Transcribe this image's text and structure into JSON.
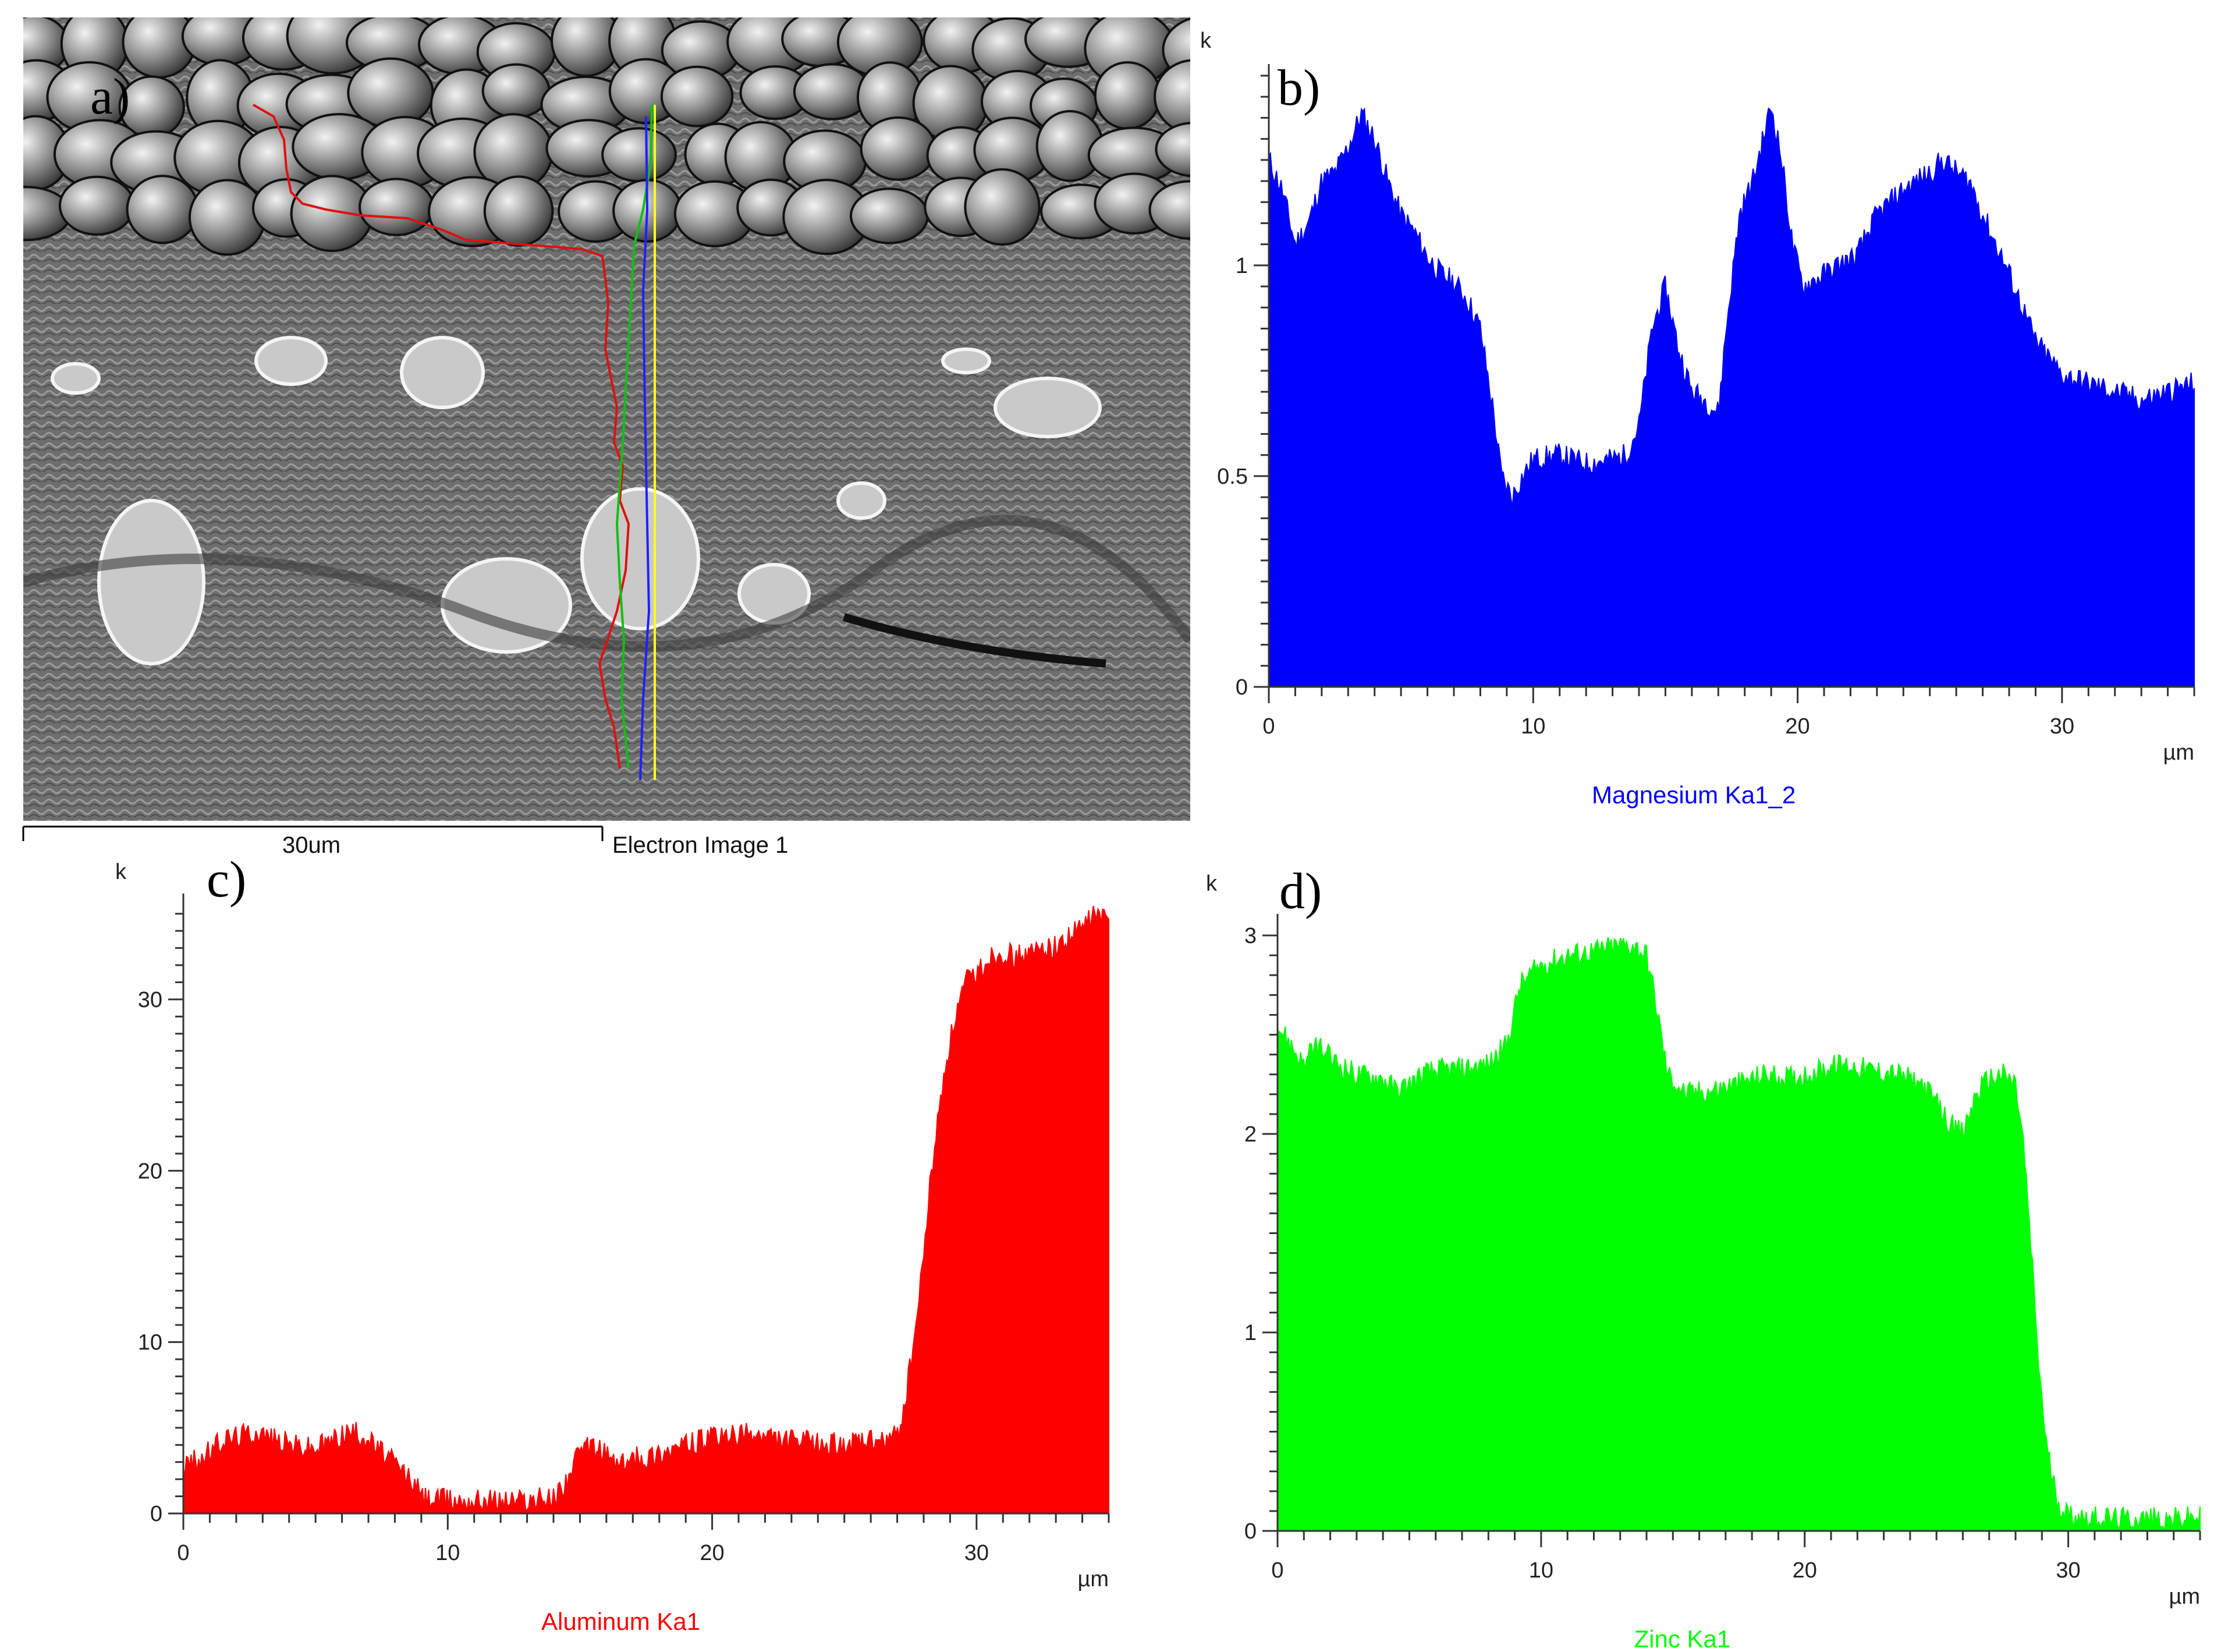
{
  "panels": {
    "a": {
      "letter": "a)",
      "scale_label": "30um",
      "image_label": "Electron Image 1"
    },
    "b": {
      "letter": "b)"
    },
    "c": {
      "letter": "c)"
    },
    "d": {
      "letter": "d)"
    }
  },
  "colors": {
    "magnesium": "#0000ff",
    "aluminum": "#ff0000",
    "zinc": "#00ff00",
    "overlay_red": "#e01010",
    "overlay_green": "#10c010",
    "overlay_blue": "#2020ff",
    "overlay_yellow": "#ffff20"
  },
  "chart_data": [
    {
      "type": "area",
      "panel": "b",
      "series_name": "Magnesium Ka1_2",
      "color": "#0000ff",
      "y_unit": "k",
      "x_unit": "µm",
      "xlim": [
        0,
        35
      ],
      "ylim": [
        0,
        1.45
      ],
      "x_ticks": [
        0,
        10,
        20,
        30
      ],
      "y_ticks": [
        0,
        0.5,
        1
      ],
      "y_tick_labels": [
        "0",
        "0.5",
        "1"
      ],
      "x": [
        0,
        0.5,
        1,
        1.5,
        2,
        2.5,
        3,
        3.5,
        4,
        4.5,
        5,
        5.5,
        6,
        6.5,
        7,
        7.5,
        8,
        8.5,
        8.8,
        9.2,
        9.6,
        10,
        11,
        12,
        13,
        13.5,
        14,
        14.5,
        15,
        15.5,
        16,
        16.5,
        17,
        17.3,
        17.8,
        18.3,
        18.7,
        19,
        19.4,
        19.8,
        20.2,
        20.8,
        21.5,
        22.2,
        23,
        24,
        25,
        25.5,
        26,
        26.5,
        27,
        27.5,
        28,
        28.5,
        29,
        29.5,
        30,
        31,
        32,
        33,
        34,
        35
      ],
      "y": [
        1.25,
        1.18,
        1.05,
        1.1,
        1.2,
        1.22,
        1.28,
        1.36,
        1.3,
        1.2,
        1.12,
        1.08,
        1.02,
        0.98,
        0.96,
        0.92,
        0.85,
        0.65,
        0.5,
        0.45,
        0.5,
        0.54,
        0.55,
        0.53,
        0.54,
        0.55,
        0.62,
        0.85,
        0.95,
        0.8,
        0.7,
        0.68,
        0.65,
        0.85,
        1.12,
        1.2,
        1.3,
        1.38,
        1.25,
        1.05,
        0.95,
        0.97,
        1.0,
        1.02,
        1.12,
        1.18,
        1.22,
        1.25,
        1.22,
        1.2,
        1.12,
        1.05,
        0.98,
        0.9,
        0.82,
        0.78,
        0.74,
        0.72,
        0.7,
        0.68,
        0.7,
        0.72
      ]
    },
    {
      "type": "area",
      "panel": "c",
      "series_name": "Aluminum Ka1",
      "color": "#ff0000",
      "y_unit": "k",
      "x_unit": "µm",
      "xlim": [
        0,
        35
      ],
      "ylim": [
        0,
        35.5
      ],
      "x_ticks": [
        0,
        10,
        20,
        30
      ],
      "y_ticks": [
        0,
        10,
        20,
        30
      ],
      "y_tick_labels": [
        "0",
        "10",
        "20",
        "30"
      ],
      "x": [
        0,
        0.7,
        1.5,
        2,
        2.8,
        3.5,
        4.2,
        5,
        5.5,
        6.2,
        6.8,
        7.5,
        8,
        8.6,
        9.1,
        10,
        11,
        12,
        13,
        14,
        14.5,
        15,
        15.5,
        16,
        16.5,
        17,
        17.5,
        18.5,
        19.5,
        20.5,
        21.5,
        22.5,
        23.5,
        24.5,
        25.5,
        26.5,
        27,
        27.3,
        27.8,
        28.3,
        28.8,
        29.2,
        29.6,
        30,
        30.5,
        31,
        31.5,
        32,
        32.5,
        33,
        33.5,
        34,
        34.5,
        35
      ],
      "y": [
        2.8,
        3.2,
        4.3,
        4.5,
        4.8,
        4.3,
        4.0,
        3.8,
        4.2,
        4.8,
        4.6,
        3.6,
        2.9,
        2.0,
        0.9,
        0.8,
        0.8,
        0.8,
        0.8,
        0.9,
        2.0,
        3.6,
        3.9,
        3.5,
        2.8,
        3.2,
        3.3,
        3.8,
        4.2,
        4.5,
        4.6,
        4.3,
        4.2,
        4.0,
        4.1,
        4.2,
        4.5,
        6.5,
        12.0,
        20.0,
        26.0,
        29.0,
        31.0,
        31.5,
        32.5,
        32.8,
        32.5,
        32.6,
        33.0,
        33.0,
        33.6,
        34.2,
        35.0,
        34.5
      ]
    },
    {
      "type": "area",
      "panel": "d",
      "series_name": "Zinc Ka1",
      "color": "#00ff00",
      "y_unit": "k",
      "x_unit": "µm",
      "xlim": [
        0,
        35
      ],
      "ylim": [
        0,
        3.05
      ],
      "x_ticks": [
        0,
        10,
        20,
        30
      ],
      "y_ticks": [
        0,
        1,
        2,
        3
      ],
      "y_tick_labels": [
        "0",
        "1",
        "2",
        "3"
      ],
      "x": [
        0,
        0.5,
        1,
        1.5,
        2,
        3,
        4,
        4.5,
        5,
        5.5,
        6,
        7,
        8,
        8.7,
        9.2,
        10,
        11,
        12,
        13,
        13.5,
        14,
        14.3,
        14.8,
        15.5,
        16.5,
        17.5,
        18.5,
        19.5,
        20.5,
        21.5,
        22.5,
        23.5,
        24.5,
        25.5,
        26,
        26.5,
        27,
        27.5,
        28,
        28.3,
        28.6,
        28.9,
        29.2,
        29.6,
        30,
        31,
        32,
        33,
        34,
        35
      ],
      "y": [
        2.55,
        2.45,
        2.35,
        2.45,
        2.38,
        2.3,
        2.28,
        2.22,
        2.25,
        2.3,
        2.32,
        2.33,
        2.35,
        2.45,
        2.75,
        2.85,
        2.9,
        2.92,
        2.95,
        2.95,
        2.9,
        2.7,
        2.3,
        2.2,
        2.22,
        2.25,
        2.3,
        2.28,
        2.32,
        2.35,
        2.32,
        2.3,
        2.25,
        2.05,
        2.0,
        2.2,
        2.28,
        2.3,
        2.25,
        1.95,
        1.4,
        0.8,
        0.4,
        0.15,
        0.08,
        0.07,
        0.06,
        0.06,
        0.06,
        0.07
      ]
    }
  ]
}
